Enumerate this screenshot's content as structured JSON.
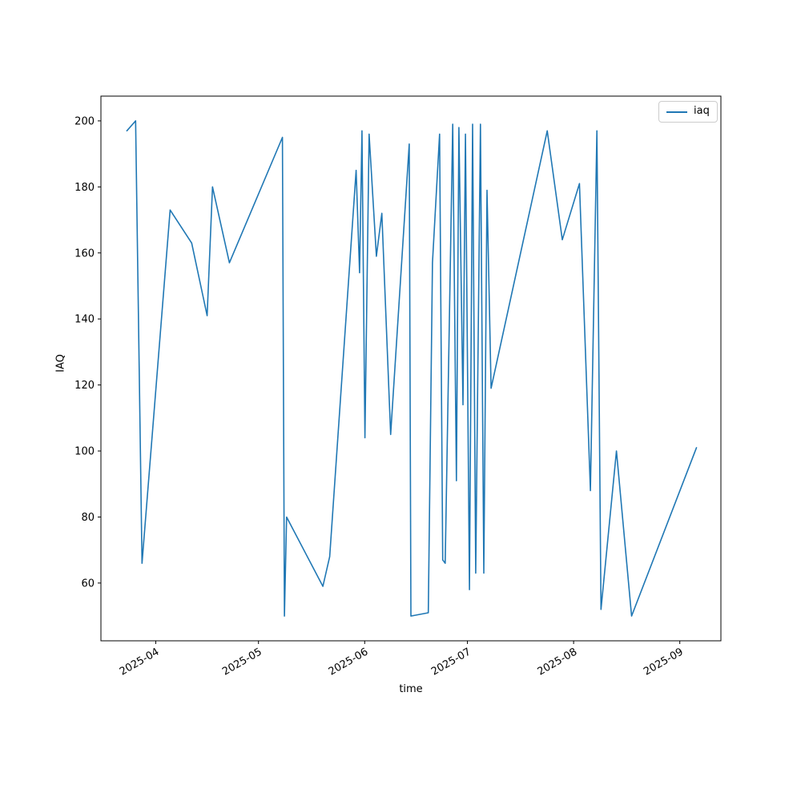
{
  "canvas": {
    "background": "#ffffff"
  },
  "chart_data": {
    "type": "line",
    "title": "",
    "xlabel": "time",
    "ylabel": "IAQ",
    "grid": false,
    "legend_position": "upper right",
    "line_color": "#1f77b4",
    "axes_color": "#000000",
    "ylim": [
      42.5,
      207.5
    ],
    "xlim": [
      "2025-03-16 00:00",
      "2025-09-13 00:00"
    ],
    "yticks": [
      60,
      80,
      100,
      120,
      140,
      160,
      180,
      200
    ],
    "xticks": [
      {
        "date": "2025-04-01",
        "label": "2025-04"
      },
      {
        "date": "2025-05-01",
        "label": "2025-05"
      },
      {
        "date": "2025-06-01",
        "label": "2025-06"
      },
      {
        "date": "2025-07-01",
        "label": "2025-07"
      },
      {
        "date": "2025-08-01",
        "label": "2025-08"
      },
      {
        "date": "2025-09-01",
        "label": "2025-09"
      }
    ],
    "xtick_rotation_deg": 30,
    "series": [
      {
        "name": "iaq",
        "points": [
          [
            "2025-03-23 14:00",
            197
          ],
          [
            "2025-03-26 03:00",
            200
          ],
          [
            "2025-03-28 00:00",
            66
          ],
          [
            "2025-04-05 05:00",
            173
          ],
          [
            "2025-04-11 12:00",
            163
          ],
          [
            "2025-04-16 00:00",
            141
          ],
          [
            "2025-04-17 14:00",
            180
          ],
          [
            "2025-04-22 12:00",
            157
          ],
          [
            "2025-05-08 00:00",
            195
          ],
          [
            "2025-05-08 14:00",
            50
          ],
          [
            "2025-05-09 05:00",
            80
          ],
          [
            "2025-05-19 19:00",
            59
          ],
          [
            "2025-05-21 19:00",
            68
          ],
          [
            "2025-05-29 12:00",
            185
          ],
          [
            "2025-05-30 12:00",
            154
          ],
          [
            "2025-05-31 05:00",
            197
          ],
          [
            "2025-06-01 02:00",
            104
          ],
          [
            "2025-06-02 07:00",
            196
          ],
          [
            "2025-06-04 10:00",
            159
          ],
          [
            "2025-06-06 00:00",
            172
          ],
          [
            "2025-06-08 14:00",
            105
          ],
          [
            "2025-06-14 00:00",
            193
          ],
          [
            "2025-06-14 12:00",
            50
          ],
          [
            "2025-06-19 14:00",
            51
          ],
          [
            "2025-06-20 19:00",
            157
          ],
          [
            "2025-06-22 21:00",
            196
          ],
          [
            "2025-06-23 19:00",
            67
          ],
          [
            "2025-06-24 12:00",
            66
          ],
          [
            "2025-06-26 17:00",
            199
          ],
          [
            "2025-06-27 19:00",
            91
          ],
          [
            "2025-06-28 12:00",
            198
          ],
          [
            "2025-06-29 17:00",
            114
          ],
          [
            "2025-06-30 10:00",
            196
          ],
          [
            "2025-07-01 14:00",
            58
          ],
          [
            "2025-07-02 12:00",
            199
          ],
          [
            "2025-07-03 10:00",
            63
          ],
          [
            "2025-07-04 19:00",
            199
          ],
          [
            "2025-07-05 19:00",
            63
          ],
          [
            "2025-07-06 17:00",
            179
          ],
          [
            "2025-07-07 22:00",
            119
          ],
          [
            "2025-07-24 07:00",
            197
          ],
          [
            "2025-07-28 17:00",
            164
          ],
          [
            "2025-08-02 17:00",
            181
          ],
          [
            "2025-08-05 22:00",
            88
          ],
          [
            "2025-08-07 19:00",
            197
          ],
          [
            "2025-08-09 00:00",
            52
          ],
          [
            "2025-08-13 12:00",
            100
          ],
          [
            "2025-08-17 22:00",
            50
          ],
          [
            "2025-09-05 21:00",
            101
          ]
        ]
      }
    ]
  }
}
